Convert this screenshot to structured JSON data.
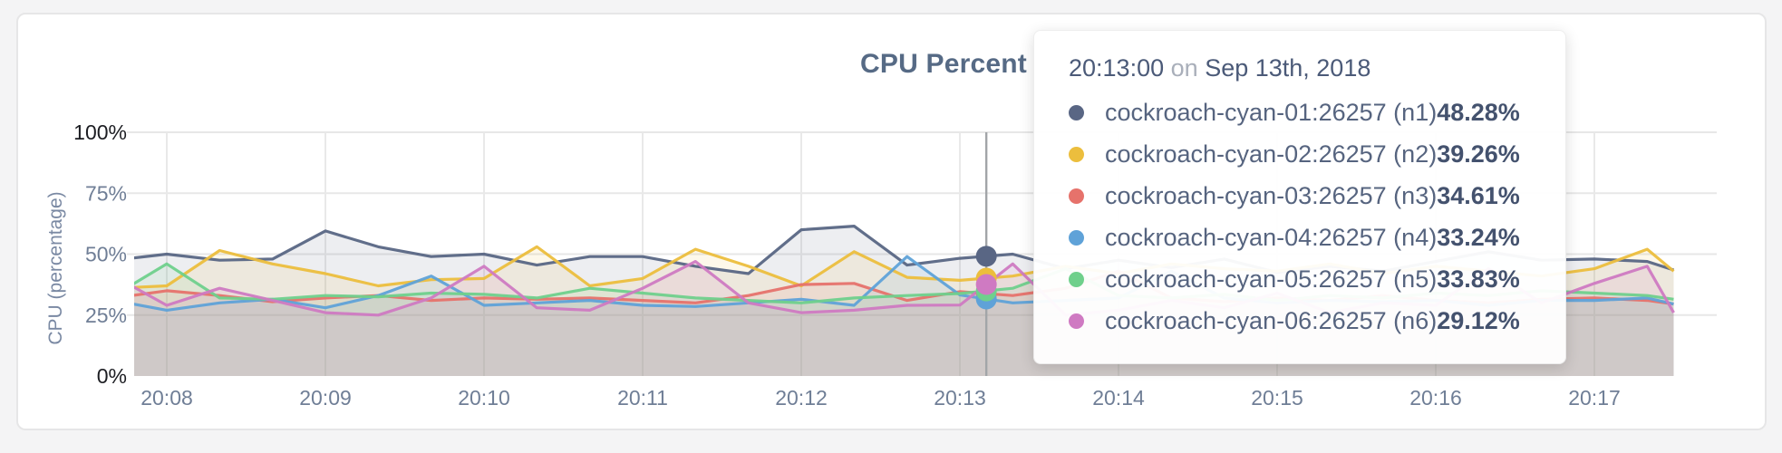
{
  "page": {
    "background": "#f4f4f5",
    "card_background": "#ffffff",
    "card_border": "#e6e6e7"
  },
  "chart_data": {
    "type": "line",
    "title": "CPU Percent",
    "ylabel": "CPU (percentage)",
    "xlabel": "",
    "grid": true,
    "legend_position": "tooltip",
    "ylim": [
      0,
      100
    ],
    "x_unit": "seconds since 20:07:40 on Sep 13th, 2018",
    "x": [
      0,
      20,
      40,
      60,
      80,
      100,
      120,
      140,
      160,
      180,
      200,
      220,
      240,
      260,
      280,
      300,
      320,
      340,
      360,
      380,
      400,
      420,
      440,
      460,
      480,
      500,
      520,
      540,
      560,
      580,
      590
    ],
    "xticks": [
      {
        "label": "20:08",
        "sec": 20
      },
      {
        "label": "20:09",
        "sec": 80
      },
      {
        "label": "20:10",
        "sec": 140
      },
      {
        "label": "20:11",
        "sec": 200
      },
      {
        "label": "20:12",
        "sec": 260
      },
      {
        "label": "20:13",
        "sec": 320
      },
      {
        "label": "20:14",
        "sec": 380
      },
      {
        "label": "20:15",
        "sec": 440
      },
      {
        "label": "20:16",
        "sec": 500
      },
      {
        "label": "20:17",
        "sec": 560
      }
    ],
    "yticks": [
      {
        "label": "0%",
        "value": 0,
        "strong": true
      },
      {
        "label": "25%",
        "value": 25,
        "strong": false
      },
      {
        "label": "50%",
        "value": 50,
        "strong": false
      },
      {
        "label": "75%",
        "value": 75,
        "strong": false
      },
      {
        "label": "100%",
        "value": 100,
        "strong": true
      }
    ],
    "series": [
      {
        "name": "cockroach-cyan-01:26257 (n1)",
        "color": "#596684",
        "values": [
          47.5,
          50,
          47.5,
          48,
          59.5,
          53,
          49,
          50,
          45.5,
          49,
          49,
          45,
          42,
          60,
          61.5,
          45.5,
          48.28,
          50,
          44,
          47.5,
          44.5,
          48,
          42.5,
          45,
          43,
          47,
          51,
          47.5,
          48,
          47,
          43.5
        ]
      },
      {
        "name": "cockroach-cyan-02:26257 (n2)",
        "color": "#ecbe3d",
        "values": [
          36,
          37,
          51.5,
          46,
          42,
          37,
          39.5,
          40,
          53,
          37,
          40,
          52,
          45,
          37,
          51,
          40.5,
          39.26,
          41,
          45,
          42,
          46,
          44,
          43,
          46,
          42,
          45,
          43,
          41,
          44,
          52,
          43
        ]
      },
      {
        "name": "cockroach-cyan-03:26257 (n3)",
        "color": "#e6726b",
        "values": [
          32,
          35,
          33,
          30.5,
          32,
          33,
          31,
          32,
          31.5,
          32,
          31,
          30,
          33,
          37.5,
          38,
          31,
          34.61,
          33,
          36,
          43,
          32,
          30.5,
          32,
          31,
          33,
          31,
          30,
          31.5,
          32,
          31,
          29.5
        ]
      },
      {
        "name": "cockroach-cyan-04:26257 (n4)",
        "color": "#5fa2d8",
        "values": [
          31,
          27,
          30,
          31.5,
          28,
          33,
          41,
          29,
          30,
          31,
          29,
          28.5,
          30,
          31.5,
          29,
          49,
          33.24,
          30,
          31,
          32,
          43,
          32,
          30,
          31,
          30.5,
          31,
          29,
          31,
          31,
          32,
          29.5
        ]
      },
      {
        "name": "cockroach-cyan-05:26257 (n5)",
        "color": "#6fd08c",
        "values": [
          33,
          46,
          32,
          31.5,
          33,
          32.5,
          34,
          33.5,
          32,
          36,
          34,
          32,
          31,
          30,
          32,
          33,
          33.83,
          36,
          44,
          33,
          32,
          33.5,
          31,
          33,
          32,
          34,
          33,
          35,
          34,
          33,
          31.5
        ]
      },
      {
        "name": "cockroach-cyan-06:26257 (n6)",
        "color": "#cf7ac2",
        "values": [
          41,
          29,
          36,
          31,
          26,
          25,
          32,
          45,
          28,
          27,
          36,
          47,
          30,
          26,
          27,
          29,
          29.12,
          46,
          25,
          27,
          31,
          28,
          34,
          26,
          30,
          29,
          44,
          30,
          38,
          45,
          26
        ]
      }
    ],
    "hover": {
      "sec": 330,
      "line_color": "#a2a5a8"
    }
  },
  "tooltip": {
    "time": "20:13:00",
    "connector": "on",
    "date": "Sep 13th, 2018",
    "rows": [
      {
        "name": "cockroach-cyan-01:26257 (n1)",
        "value": "48.28%",
        "color": "#596684"
      },
      {
        "name": "cockroach-cyan-02:26257 (n2)",
        "value": "39.26%",
        "color": "#ecbe3d"
      },
      {
        "name": "cockroach-cyan-03:26257 (n3)",
        "value": "34.61%",
        "color": "#e6726b"
      },
      {
        "name": "cockroach-cyan-04:26257 (n4)",
        "value": "33.24%",
        "color": "#5fa2d8"
      },
      {
        "name": "cockroach-cyan-05:26257 (n5)",
        "value": "33.83%",
        "color": "#6fd08c"
      },
      {
        "name": "cockroach-cyan-06:26257 (n6)",
        "value": "29.12%",
        "color": "#cf7ac2"
      }
    ]
  }
}
